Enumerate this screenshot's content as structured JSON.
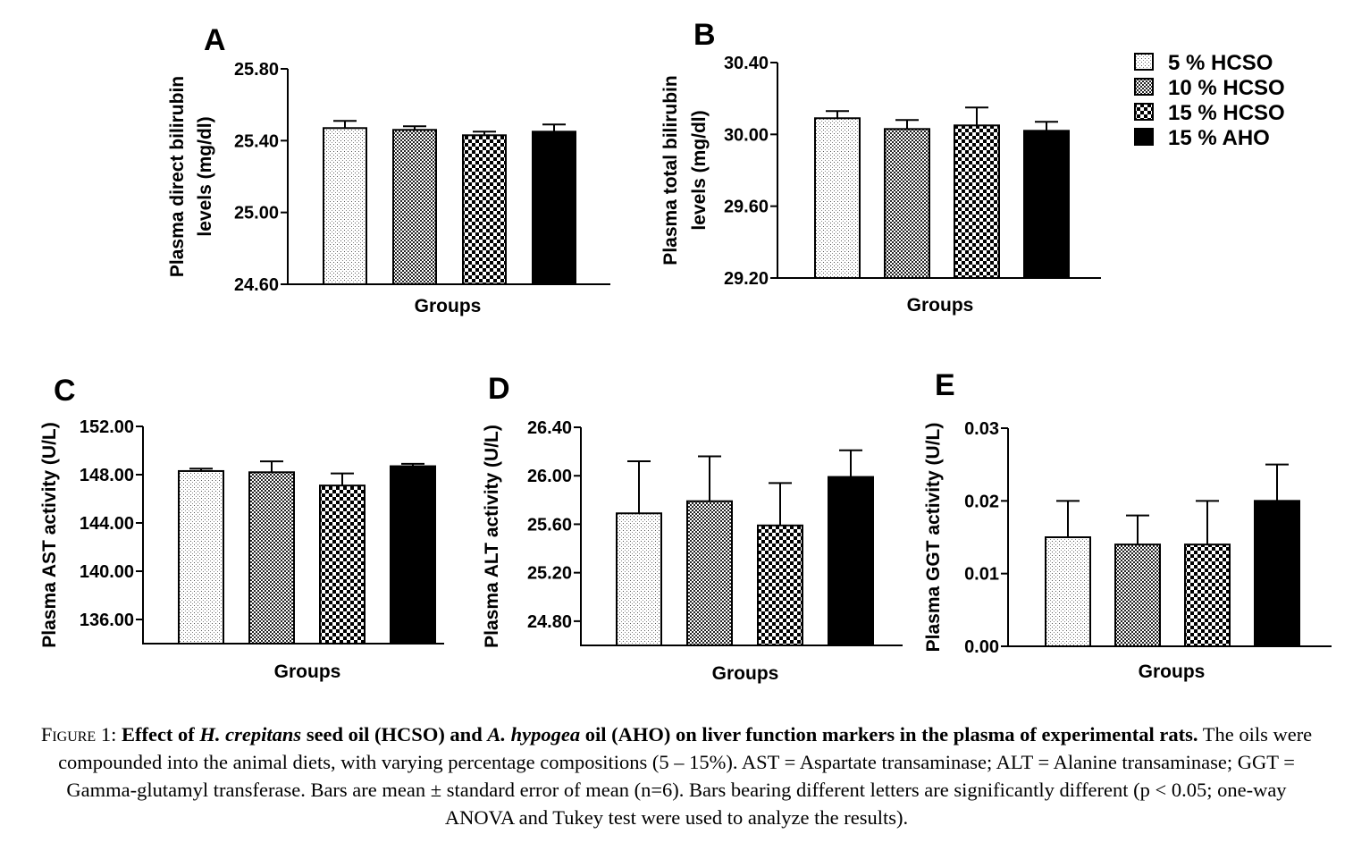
{
  "legend": {
    "items": [
      {
        "label": "5 % HCSO",
        "pattern": "dots"
      },
      {
        "label": "10 % HCSO",
        "pattern": "fine-check"
      },
      {
        "label": "15 % HCSO",
        "pattern": "coarse-check"
      },
      {
        "label": "15 % AHO",
        "pattern": "solid"
      }
    ]
  },
  "chart_data": [
    {
      "type": "bar",
      "panel": "A",
      "categories": [
        "5 % HCSO",
        "10 % HCSO",
        "15 % HCSO",
        "15 % AHO"
      ],
      "values": [
        25.47,
        25.46,
        25.43,
        25.45
      ],
      "errors": [
        0.04,
        0.02,
        0.02,
        0.04
      ],
      "ylabel_lines": [
        "Plasma direct bilirubin",
        "levels (mg/dl)"
      ],
      "xlabel": "Groups",
      "ylim": [
        24.6,
        25.8
      ],
      "yticks": [
        "24.60",
        "25.00",
        "25.40",
        "25.80"
      ]
    },
    {
      "type": "bar",
      "panel": "B",
      "categories": [
        "5 % HCSO",
        "10 % HCSO",
        "15 % HCSO",
        "15 % AHO"
      ],
      "values": [
        30.09,
        30.03,
        30.05,
        30.02
      ],
      "errors": [
        0.04,
        0.05,
        0.1,
        0.05
      ],
      "ylabel_lines": [
        "Plasma total bilirubin",
        "levels (mg/dl)"
      ],
      "xlabel": "Groups",
      "ylim": [
        29.2,
        30.4
      ],
      "yticks": [
        "29.20",
        "29.60",
        "30.00",
        "30.40"
      ]
    },
    {
      "type": "bar",
      "panel": "C",
      "categories": [
        "5 % HCSO",
        "10 % HCSO",
        "15 % HCSO",
        "15 % AHO"
      ],
      "values": [
        148.3,
        148.2,
        147.1,
        148.7
      ],
      "errors": [
        0.2,
        0.9,
        1.0,
        0.2
      ],
      "ylabel_lines": [
        "Plasma AST activity (U/L)"
      ],
      "xlabel": "Groups",
      "ylim": [
        134,
        152
      ],
      "yticks": [
        "136.00",
        "140.00",
        "144.00",
        "148.00",
        "152.00"
      ]
    },
    {
      "type": "bar",
      "panel": "D",
      "categories": [
        "5 % HCSO",
        "10 % HCSO",
        "15 % HCSO",
        "15 % AHO"
      ],
      "values": [
        25.69,
        25.79,
        25.59,
        25.99
      ],
      "errors": [
        0.43,
        0.37,
        0.35,
        0.22
      ],
      "ylabel_lines": [
        "Plasma ALT activity (U/L)"
      ],
      "xlabel": "Groups",
      "ylim": [
        24.6,
        26.4
      ],
      "yticks": [
        "24.80",
        "25.20",
        "25.60",
        "26.00",
        "26.40"
      ]
    },
    {
      "type": "bar",
      "panel": "E",
      "categories": [
        "5 % HCSO",
        "10 % HCSO",
        "15 % HCSO",
        "15 % AHO"
      ],
      "values": [
        0.015,
        0.014,
        0.014,
        0.02
      ],
      "errors": [
        0.005,
        0.004,
        0.006,
        0.005
      ],
      "ylabel_lines": [
        "Plasma GGT activity (U/L)"
      ],
      "xlabel": "Groups",
      "ylim": [
        0,
        0.03
      ],
      "yticks": [
        "0.00",
        "0.01",
        "0.02",
        "0.03"
      ]
    }
  ],
  "caption": {
    "figure_label": "Figure 1: ",
    "bold_1": "Effect of ",
    "italic_1": "H. crepitans",
    "bold_2": " seed oil (HCSO) and ",
    "italic_2": "A. hypogea",
    "bold_3": " oil (AHO) on liver function markers in the plasma of experimental rats.",
    "body": " The oils were compounded into the animal diets, with varying percentage compositions (5 – 15%). AST = Aspartate transaminase; ALT = Alanine transaminase; GGT = Gamma-glutamyl transferase. Bars are mean ± standard error of mean (n=6). Bars bearing different letters are significantly different (p < 0.05; one-way ANOVA and Tukey test were used to analyze the results)."
  }
}
